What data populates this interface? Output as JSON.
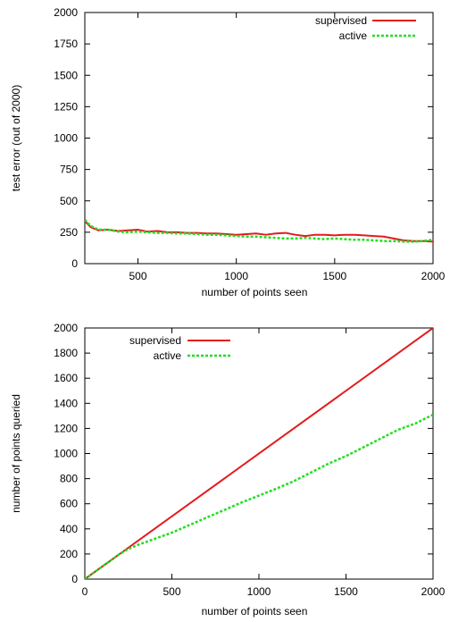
{
  "chart_data": [
    {
      "type": "line",
      "title": "",
      "xlabel": "number of points seen",
      "ylabel": "test error (out of 2000)",
      "xlim": [
        230,
        2000
      ],
      "ylim": [
        0,
        2000
      ],
      "xticks": [
        "500",
        "1000",
        "1500",
        "2000"
      ],
      "yticks": [
        "0",
        "250",
        "500",
        "750",
        "1000",
        "1250",
        "1500",
        "1750",
        "2000"
      ],
      "legend_position": "top-right",
      "grid": false,
      "series": [
        {
          "name": "supervised",
          "color": "#e41a1c",
          "style": "solid",
          "x": [
            230,
            260,
            300,
            350,
            400,
            450,
            500,
            550,
            600,
            650,
            700,
            750,
            800,
            850,
            900,
            950,
            1000,
            1050,
            1100,
            1150,
            1200,
            1250,
            1300,
            1350,
            1400,
            1450,
            1500,
            1550,
            1600,
            1650,
            1700,
            1750,
            1800,
            1850,
            1900,
            1950,
            2000
          ],
          "y": [
            340,
            290,
            265,
            270,
            260,
            265,
            270,
            255,
            260,
            250,
            250,
            245,
            245,
            240,
            240,
            235,
            230,
            235,
            240,
            230,
            240,
            245,
            230,
            220,
            230,
            230,
            225,
            230,
            230,
            225,
            220,
            215,
            200,
            185,
            180,
            180,
            175
          ]
        },
        {
          "name": "active",
          "color": "#22dd22",
          "style": "dashed",
          "x": [
            230,
            260,
            300,
            350,
            400,
            450,
            500,
            550,
            600,
            650,
            700,
            750,
            800,
            850,
            900,
            950,
            1000,
            1050,
            1100,
            1150,
            1200,
            1250,
            1300,
            1350,
            1400,
            1450,
            1500,
            1550,
            1600,
            1650,
            1700,
            1750,
            1800,
            1850,
            1900,
            1950,
            2000
          ],
          "y": [
            350,
            300,
            270,
            270,
            255,
            250,
            255,
            250,
            245,
            245,
            240,
            240,
            235,
            230,
            230,
            225,
            220,
            215,
            215,
            210,
            205,
            200,
            200,
            205,
            200,
            195,
            200,
            195,
            190,
            190,
            185,
            180,
            180,
            175,
            175,
            180,
            190
          ]
        }
      ]
    },
    {
      "type": "line",
      "title": "",
      "xlabel": "number of points seen",
      "ylabel": "number of points queried",
      "xlim": [
        0,
        2000
      ],
      "ylim": [
        0,
        2000
      ],
      "xticks": [
        "0",
        "500",
        "1000",
        "1500",
        "2000"
      ],
      "yticks": [
        "0",
        "200",
        "400",
        "600",
        "800",
        "1000",
        "1200",
        "1400",
        "1600",
        "1800",
        "2000"
      ],
      "legend_position": "top-left",
      "grid": false,
      "series": [
        {
          "name": "supervised",
          "color": "#e41a1c",
          "style": "solid",
          "x": [
            0,
            2000
          ],
          "y": [
            0,
            2000
          ]
        },
        {
          "name": "active",
          "color": "#22dd22",
          "style": "dashed",
          "x": [
            0,
            100,
            200,
            250,
            300,
            400,
            500,
            600,
            700,
            800,
            900,
            1000,
            1100,
            1200,
            1300,
            1400,
            1500,
            1600,
            1700,
            1800,
            1900,
            2000
          ],
          "y": [
            0,
            100,
            200,
            240,
            270,
            320,
            370,
            430,
            490,
            550,
            610,
            665,
            720,
            780,
            850,
            920,
            980,
            1050,
            1120,
            1190,
            1240,
            1310
          ]
        }
      ]
    }
  ]
}
